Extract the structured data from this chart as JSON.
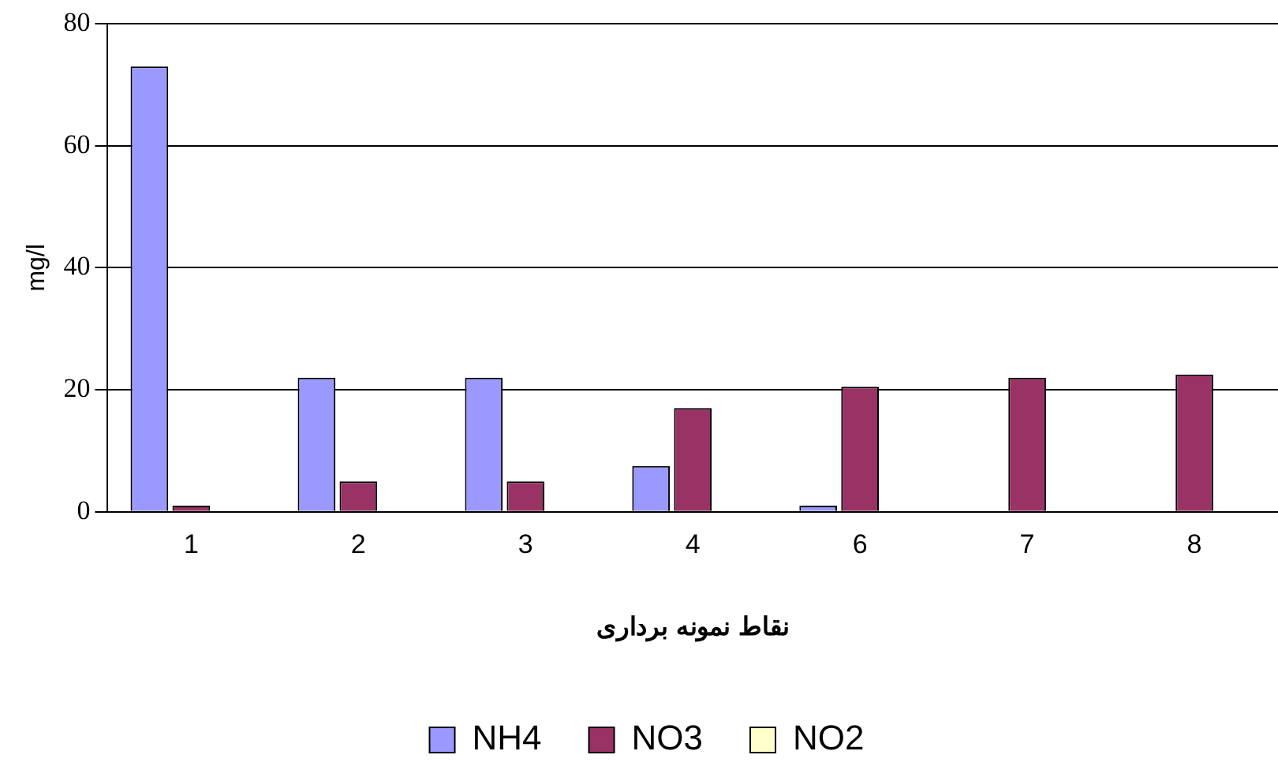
{
  "chart_data": {
    "type": "bar",
    "xlabel": "نقاط نمونه برداری",
    "ylabel": "mg/l",
    "categories": [
      "1",
      "2",
      "3",
      "4",
      "6",
      "7",
      "8"
    ],
    "series": [
      {
        "name": "NH4",
        "color": "#9999ff",
        "values": [
          73,
          22,
          22,
          7.5,
          1,
          0,
          0
        ]
      },
      {
        "name": "NO3",
        "color": "#993366",
        "values": [
          1,
          5,
          5,
          17,
          20.5,
          22,
          22.5
        ]
      },
      {
        "name": "NO2",
        "color": "#ffffcc",
        "values": [
          0,
          0,
          0,
          0,
          0,
          0,
          0
        ]
      }
    ],
    "ylim": [
      0,
      80
    ],
    "yticks": [
      0,
      20,
      40,
      60,
      80
    ],
    "grid": "y",
    "legend": "bottom"
  }
}
